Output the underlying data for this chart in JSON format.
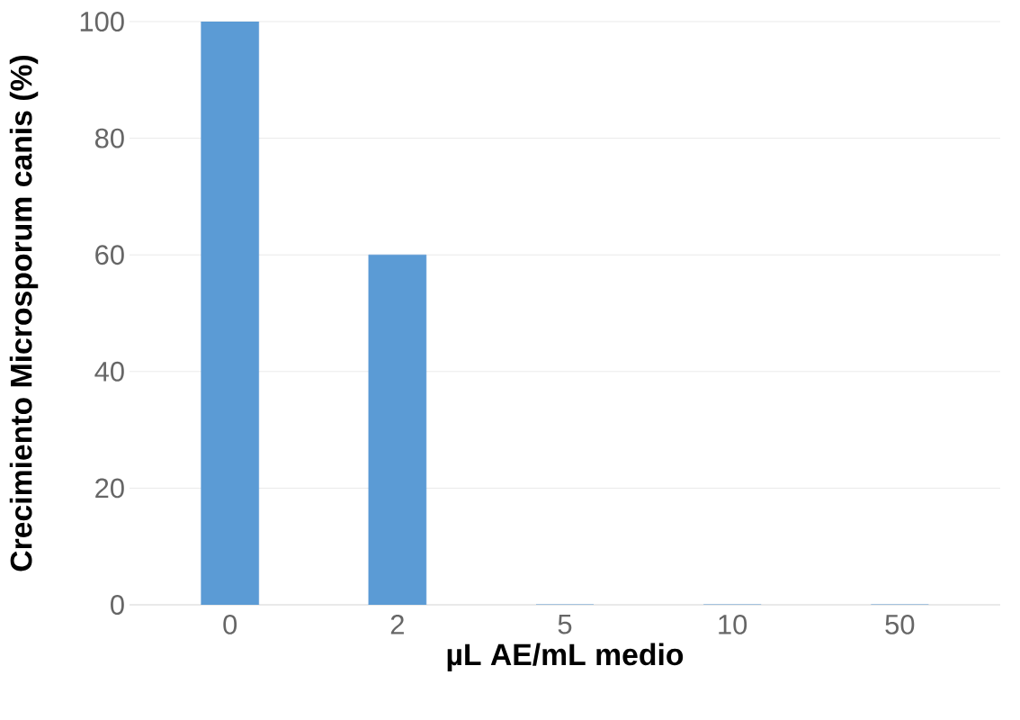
{
  "chart_data": {
    "type": "bar",
    "xlabel": "µL AE/mL medio",
    "ylabel": "Crecimiento Microsporum canis (%)",
    "categories": [
      "0",
      "2",
      "5",
      "10",
      "50"
    ],
    "values": [
      100,
      60,
      0,
      0,
      0
    ],
    "color": "#5b9bd5",
    "ylim": [
      0,
      100
    ],
    "yticks": [
      0,
      20,
      40,
      60,
      80,
      100
    ],
    "grid": "y"
  }
}
